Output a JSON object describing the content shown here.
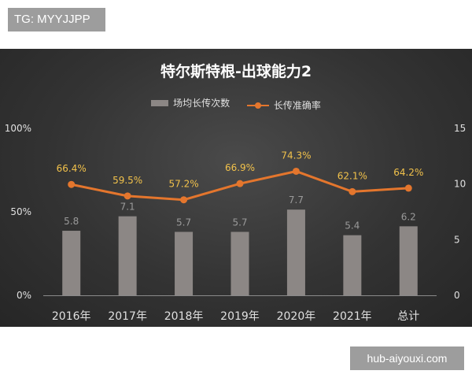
{
  "tag_text": "TG: MYYJJPP",
  "watermark_text": "hub-aiyouxi.com",
  "chart_data": {
    "type": "bar",
    "title": "特尔斯特根-出球能力2",
    "categories": [
      "2016年",
      "2017年",
      "2018年",
      "2019年",
      "2020年",
      "2021年",
      "总计"
    ],
    "series": [
      {
        "name": "场均长传次数",
        "type": "bar",
        "axis": "right",
        "values": [
          5.8,
          7.1,
          5.7,
          5.7,
          7.7,
          5.4,
          6.2
        ],
        "labels": [
          "5.8",
          "7.1",
          "5.7",
          "5.7",
          "7.7",
          "5.4",
          "6.2"
        ],
        "color": "#8c8785"
      },
      {
        "name": "长传准确率",
        "type": "line",
        "axis": "left",
        "values": [
          66.4,
          59.5,
          57.2,
          66.9,
          74.3,
          62.1,
          64.2
        ],
        "labels": [
          "66.4%",
          "59.5%",
          "57.2%",
          "66.9%",
          "74.3%",
          "62.1%",
          "64.2%"
        ],
        "color": "#e4762d"
      }
    ],
    "left_axis": {
      "ticks": [
        "100%",
        "50%",
        "0%"
      ],
      "range": [
        0,
        100
      ]
    },
    "right_axis": {
      "ticks": [
        "15",
        "10",
        "5",
        "0"
      ],
      "range": [
        0,
        15
      ]
    },
    "legend": "top-center",
    "grid": false,
    "colors": {
      "bar": "#8c8785",
      "line": "#e4762d",
      "line_label": "#f2c24b",
      "bar_label": "#9a9a9a",
      "axis_text": "#e0e0e0"
    }
  }
}
